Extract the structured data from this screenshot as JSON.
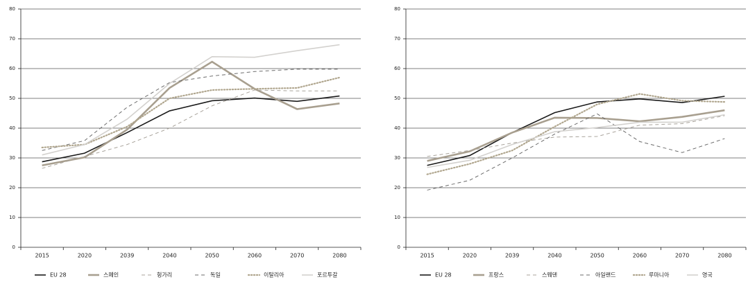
{
  "chart_data": [
    {
      "type": "line",
      "categories": [
        "2015",
        "2020",
        "2039",
        "2040",
        "2050",
        "2060",
        "2070",
        "2080"
      ],
      "ylim": [
        0,
        80
      ],
      "yticks": [
        0,
        10,
        20,
        30,
        40,
        50,
        60,
        70,
        80
      ],
      "grid": true,
      "series": [
        {
          "name": "EU 28",
          "color": "#1a1a1a",
          "dash": "solid",
          "width": 1.6,
          "values": [
            28.7,
            31.6,
            38.5,
            45.8,
            49.2,
            50.1,
            49,
            50.8
          ]
        },
        {
          "name": "스페인",
          "color": "#a89f8f",
          "dash": "solid",
          "width": 2.6,
          "values": [
            27.5,
            30.2,
            39.5,
            53.5,
            62.3,
            53.2,
            46.4,
            48.3
          ]
        },
        {
          "name": "헝가리",
          "color": "#a8a39b",
          "dash": "dashed",
          "width": 1,
          "values": [
            26.5,
            30.5,
            34.5,
            40,
            47.5,
            52.8,
            52.5,
            52.5
          ]
        },
        {
          "name": "독일",
          "color": "#6b6b6b",
          "dash": "dashed",
          "width": 1,
          "values": [
            32.5,
            35.8,
            47,
            55.3,
            57.5,
            59,
            59.8,
            59.8
          ]
        },
        {
          "name": "이탈리아",
          "color": "#b0a68e",
          "dash": "dotted",
          "width": 2.2,
          "values": [
            33.5,
            34.5,
            40.5,
            50,
            52.8,
            53.2,
            53.5,
            57
          ]
        },
        {
          "name": "포르투갈",
          "color": "#d3d1ce",
          "dash": "solid",
          "width": 1.6,
          "values": [
            31,
            34.5,
            43,
            55,
            64,
            63.8,
            66,
            68
          ]
        }
      ]
    },
    {
      "type": "line",
      "categories": [
        "2015",
        "2020",
        "2039",
        "2040",
        "2050",
        "2060",
        "2070",
        "2080"
      ],
      "ylim": [
        0,
        80
      ],
      "yticks": [
        0,
        10,
        20,
        30,
        40,
        50,
        60,
        70,
        80
      ],
      "grid": true,
      "series": [
        {
          "name": "EU 28",
          "color": "#1a1a1a",
          "dash": "solid",
          "width": 1.6,
          "values": [
            27.5,
            30.8,
            38.5,
            45.2,
            48.8,
            49.8,
            48.6,
            50.7
          ]
        },
        {
          "name": "프랑스",
          "color": "#a89f8f",
          "dash": "solid",
          "width": 2.6,
          "values": [
            29,
            32.2,
            38.5,
            43.5,
            43.4,
            42.3,
            43.8,
            46
          ]
        },
        {
          "name": "스웨덴",
          "color": "#a8a39b",
          "dash": "dashed",
          "width": 1,
          "values": [
            30.5,
            32.5,
            35,
            37,
            37.2,
            41,
            41.5,
            44.2
          ]
        },
        {
          "name": "아일랜드",
          "color": "#6b6b6b",
          "dash": "dashed",
          "width": 1,
          "values": [
            19.2,
            22.5,
            30,
            38,
            44.8,
            35.5,
            31.8,
            36.5
          ]
        },
        {
          "name": "루마니아",
          "color": "#b0a68e",
          "dash": "dotted",
          "width": 2.2,
          "values": [
            24.5,
            28,
            32.5,
            40.5,
            48,
            51.5,
            49.2,
            48.8
          ]
        },
        {
          "name": "영국",
          "color": "#d3d1ce",
          "dash": "solid",
          "width": 1.6,
          "values": [
            26.8,
            29.2,
            34.5,
            38.8,
            40.2,
            42,
            42,
            44.5
          ]
        }
      ]
    }
  ]
}
